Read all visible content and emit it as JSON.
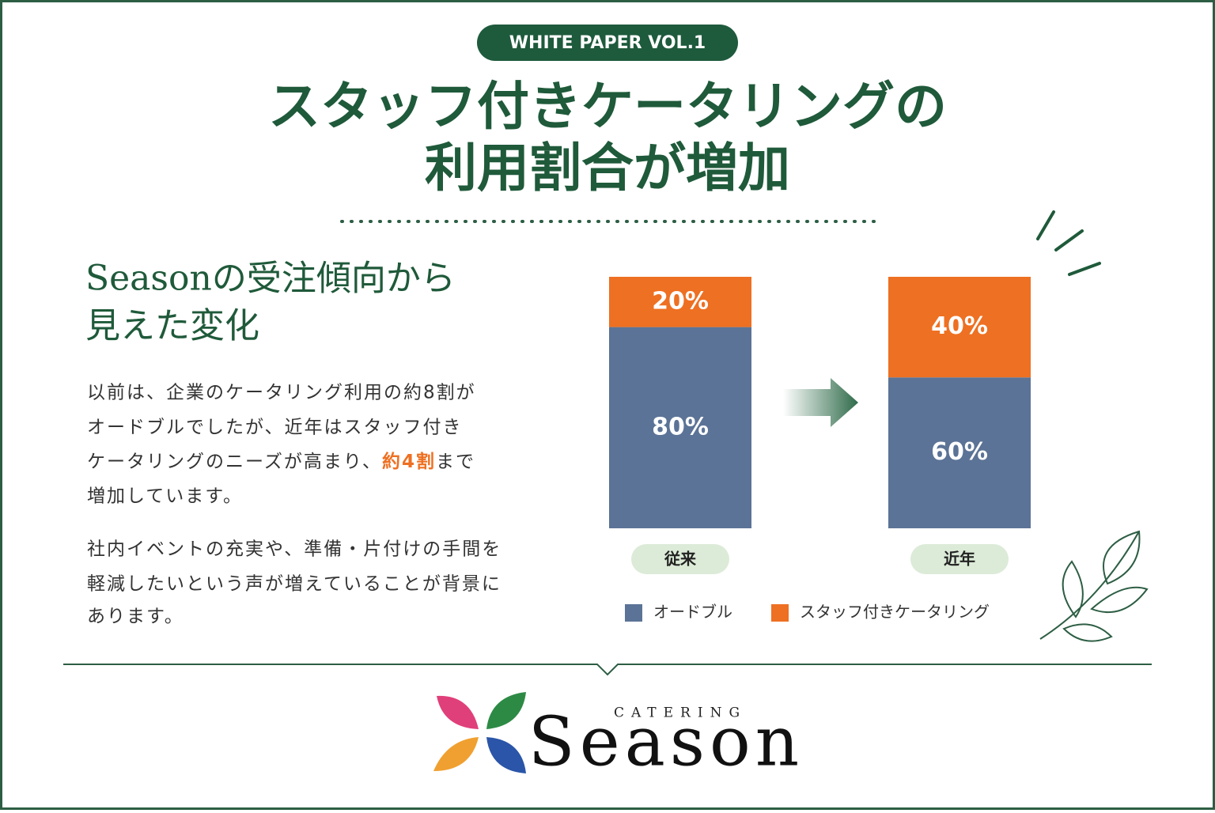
{
  "badge": "WHITE PAPER VOL.1",
  "title": [
    "スタッフ付きケータリングの",
    "利用割合が増加"
  ],
  "subtitle": [
    "Seasonの受注傾向から",
    "見えた変化"
  ],
  "paragraph1": [
    "以前は、企業のケータリング利用の約8割が",
    "オードブルでしたが、近年はスタッフ付き",
    [
      "ケータリングのニーズが高まり、",
      "約4割",
      "まで"
    ],
    "増加しています。"
  ],
  "paragraph2": [
    "社内イベントの充実や、準備・片付けの手間を",
    "軽減したいという声が増えていることが背景に",
    "あります。"
  ],
  "logo": {
    "small": "CATERING",
    "name": "Season"
  },
  "chart_data": {
    "type": "stacked_bar",
    "categories": [
      "従来",
      "近年"
    ],
    "ylim": [
      0,
      100
    ],
    "series": [
      {
        "name": "オードブル",
        "color": "#5b7396",
        "values": [
          80,
          60
        ],
        "value_labels": [
          "80%",
          "60%"
        ]
      },
      {
        "name": "スタッフ付きケータリング",
        "color": "#ee7022",
        "values": [
          20,
          40
        ],
        "value_labels": [
          "20%",
          "40%"
        ]
      }
    ]
  }
}
